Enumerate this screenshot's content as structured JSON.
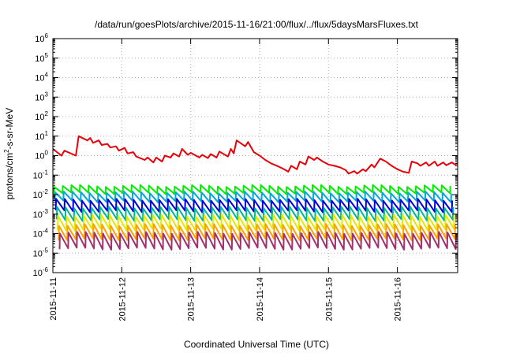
{
  "chart_data": {
    "type": "line",
    "title": "/data/run/goesPlots/archive/2015-11-16/21:00/flux/../flux/5daysMarsFluxes.txt",
    "xlabel": "Coordinated Universal Time (UTC)",
    "ylabel": {
      "base": "protons/cm",
      "sup": "2",
      "rest": "-s-sr-MeV"
    },
    "y_scale": "log",
    "ylim": [
      1e-06,
      1000000.0
    ],
    "xlim": [
      "2015-11-11",
      "2015-11-16 21:00"
    ],
    "grid": true,
    "legend": "none",
    "y_ticks": [
      {
        "base": "10",
        "exp": "-6",
        "value": 1e-06
      },
      {
        "base": "10",
        "exp": "-5",
        "value": 1e-05
      },
      {
        "base": "10",
        "exp": "-4",
        "value": 0.0001
      },
      {
        "base": "10",
        "exp": "-3",
        "value": 0.001
      },
      {
        "base": "10",
        "exp": "-2",
        "value": 0.01
      },
      {
        "base": "10",
        "exp": "-1",
        "value": 0.1
      },
      {
        "base": "10",
        "exp": "0",
        "value": 1
      },
      {
        "base": "10",
        "exp": "1",
        "value": 10
      },
      {
        "base": "10",
        "exp": "2",
        "value": 100
      },
      {
        "base": "10",
        "exp": "3",
        "value": 1000
      },
      {
        "base": "10",
        "exp": "4",
        "value": 10000
      },
      {
        "base": "10",
        "exp": "5",
        "value": 100000
      },
      {
        "base": "10",
        "exp": "6",
        "value": 1000000
      }
    ],
    "x_ticks": [
      "2015-11-11",
      "2015-11-12",
      "2015-11-13",
      "2015-11-14",
      "2015-11-15",
      "2015-11-16"
    ],
    "series": [
      {
        "color": "#e8000b",
        "x": [
          "2015-11-11 00:00",
          "2015-11-11 03:00",
          "2015-11-11 04:00",
          "2015-11-11 08:00",
          "2015-11-11 09:00",
          "2015-11-11 12:00",
          "2015-11-11 13:00",
          "2015-11-11 14:00",
          "2015-11-11 16:00",
          "2015-11-11 17:00",
          "2015-11-11 19:00",
          "2015-11-11 20:00",
          "2015-11-11 22:00",
          "2015-11-11 23:00",
          "2015-11-12 01:00",
          "2015-11-12 02:00",
          "2015-11-12 04:00",
          "2015-11-12 05:00",
          "2015-11-12 08:00",
          "2015-11-12 09:00",
          "2015-11-12 11:00",
          "2015-11-12 12:00",
          "2015-11-12 14:00",
          "2015-11-12 15:00",
          "2015-11-12 17:00",
          "2015-11-12 18:00",
          "2015-11-12 20:00",
          "2015-11-12 21:00",
          "2015-11-12 23:00",
          "2015-11-13 00:00",
          "2015-11-13 03:00",
          "2015-11-13 04:00",
          "2015-11-13 06:00",
          "2015-11-13 07:00",
          "2015-11-13 09:00",
          "2015-11-13 10:00",
          "2015-11-13 13:00",
          "2015-11-13 14:00",
          "2015-11-13 15:00",
          "2015-11-13 16:00",
          "2015-11-13 19:00",
          "2015-11-13 20:00",
          "2015-11-13 22:00",
          "2015-11-14 00:00",
          "2015-11-14 02:00",
          "2015-11-14 04:00",
          "2015-11-14 06:00",
          "2015-11-14 08:00",
          "2015-11-14 10:00",
          "2015-11-14 11:00",
          "2015-11-14 13:00",
          "2015-11-14 14:00",
          "2015-11-14 16:00",
          "2015-11-14 17:00",
          "2015-11-14 19:00",
          "2015-11-14 20:00",
          "2015-11-14 22:00",
          "2015-11-15 00:00",
          "2015-11-15 02:00",
          "2015-11-15 04:00",
          "2015-11-15 06:00",
          "2015-11-15 07:00",
          "2015-11-15 09:00",
          "2015-11-15 10:00",
          "2015-11-15 12:00",
          "2015-11-15 13:00",
          "2015-11-15 15:00",
          "2015-11-15 16:00",
          "2015-11-15 18:00",
          "2015-11-15 20:00",
          "2015-11-15 22:00",
          "2015-11-16 00:00",
          "2015-11-16 02:00",
          "2015-11-16 04:00",
          "2015-11-16 05:00",
          "2015-11-16 07:00",
          "2015-11-16 08:00",
          "2015-11-16 10:00",
          "2015-11-16 11:00",
          "2015-11-16 13:00",
          "2015-11-16 14:00",
          "2015-11-16 16:00",
          "2015-11-16 17:00",
          "2015-11-16 19:00",
          "2015-11-16 20:00",
          "2015-11-16 21:00"
        ],
        "y": [
          2.2,
          1.0,
          1.8,
          1.0,
          10,
          6.0,
          8.0,
          4.5,
          6.0,
          3.5,
          4.0,
          2.6,
          3.0,
          1.8,
          2.5,
          1.3,
          1.5,
          0.9,
          0.6,
          0.8,
          0.45,
          0.8,
          0.5,
          1.0,
          0.8,
          1.3,
          0.9,
          2.2,
          1.1,
          1.4,
          0.8,
          1.1,
          0.75,
          1.2,
          0.8,
          1.6,
          0.9,
          2.2,
          1.3,
          6.0,
          3.0,
          5.0,
          1.5,
          1.0,
          0.6,
          0.4,
          0.3,
          0.22,
          0.15,
          0.3,
          0.2,
          0.5,
          0.35,
          0.9,
          0.6,
          0.8,
          0.5,
          0.35,
          0.3,
          0.25,
          0.18,
          0.12,
          0.16,
          0.12,
          0.2,
          0.16,
          0.35,
          0.25,
          0.7,
          0.5,
          0.3,
          0.2,
          0.15,
          0.13,
          0.5,
          0.4,
          0.3,
          0.45,
          0.3,
          0.5,
          0.3,
          0.45,
          0.32,
          0.45,
          0.35,
          0.4
        ]
      },
      {
        "color": "#00ee00",
        "base": 0.028,
        "min": 0.012
      },
      {
        "color": "#00a8d8",
        "base": 0.013,
        "min": 0.0045
      },
      {
        "color": "#0000dd",
        "base": 0.0055,
        "min": 0.0014
      },
      {
        "color": "#00b890",
        "base": 0.0022,
        "min": 0.0005
      },
      {
        "color": "#e6e600",
        "base": 0.00085,
        "min": 0.00016
      },
      {
        "color": "#ffa000",
        "base": 0.00028,
        "min": 5e-05
      },
      {
        "color": "#a0306e",
        "base": 0.00011,
        "min": 1.7e-05
      }
    ]
  }
}
